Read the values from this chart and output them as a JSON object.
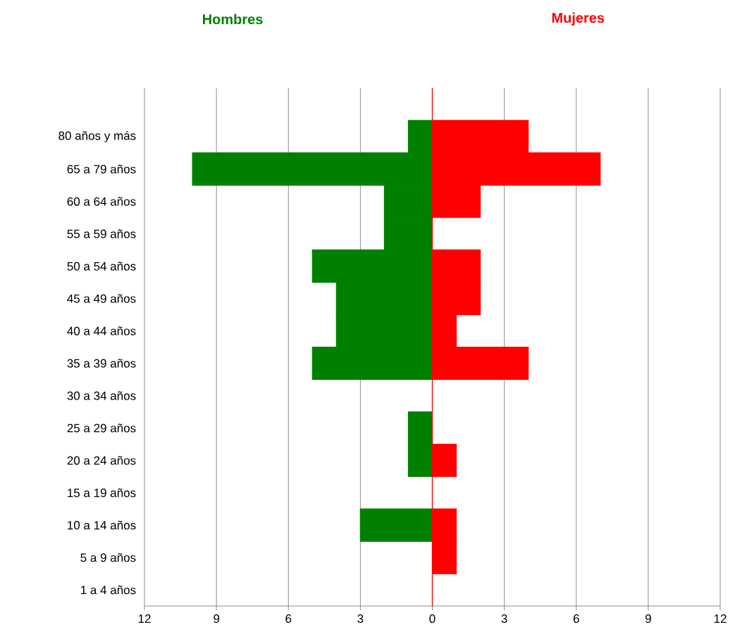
{
  "chart_data": {
    "type": "bar",
    "orientation": "horizontal",
    "categories": [
      null,
      "80 años y más",
      "65 a 79 años",
      "60 a 64 años",
      "55 a 59 años",
      "50 a 54 años",
      "45 a 49 años",
      "40 a 44 años",
      "35 a 39 años",
      "30 a 34 años",
      "25 a 29 años",
      "20 a 24 años",
      "15 a 19 años",
      "10 a 14 años",
      "5 a 9 años",
      "1 a 4 años"
    ],
    "series": [
      {
        "name": "Hombres",
        "color": "#008000",
        "values": [
          0,
          -1,
          -10,
          -2,
          -2,
          -5,
          -4,
          -4,
          -5,
          0,
          -1,
          -1,
          0,
          -3,
          0,
          0
        ]
      },
      {
        "name": "Mujeres",
        "color": "#ff0000",
        "values": [
          0,
          4,
          7,
          2,
          0,
          2,
          2,
          1,
          4,
          0,
          0,
          1,
          0,
          1,
          1,
          0
        ]
      }
    ],
    "xlim": [
      -12,
      12
    ],
    "xticks": [
      {
        "value": -12,
        "label": "12"
      },
      {
        "value": -9,
        "label": "9"
      },
      {
        "value": -6,
        "label": "6"
      },
      {
        "value": -3,
        "label": "3"
      },
      0,
      3,
      6,
      9,
      12
    ],
    "grid": "x",
    "legend": false,
    "stacked": true
  }
}
